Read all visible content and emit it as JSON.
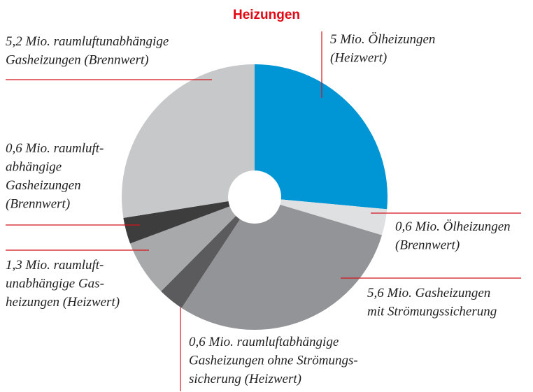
{
  "chart_data": {
    "type": "pie",
    "title": "Heizungen",
    "values": [
      5,
      0.6,
      5.6,
      0.6,
      1.3,
      0.6,
      5.2
    ],
    "value_labels": [
      [
        "5 Mio. Ölheizungen",
        "(Heizwert)"
      ],
      [
        "0,6 Mio. Ölheizungen",
        "(Brennwert)"
      ],
      [
        "5,6 Mio. Gasheizungen",
        "mit Strömungssicherung"
      ],
      [
        "0,6 Mio. raumluftabhängige",
        "Gasheizungen ohne Strömungs-",
        "sicherung (Heizwert)"
      ],
      [
        "1,3 Mio. raumluft-",
        "unabhängige Gas-",
        "heizungen (Heizwert)"
      ],
      [
        "0,6 Mio. raumluft-",
        "abhängige",
        "Gasheizungen",
        "(Brennwert)"
      ],
      [
        "5,2 Mio. raumluftunabhängige",
        "Gasheizungen (Brennwert)"
      ]
    ],
    "colors": [
      "#0096d6",
      "#dfe0e1",
      "#929497",
      "#5b5b5d",
      "#a8a9ab",
      "#3d3d3e",
      "#c7c8ca"
    ]
  }
}
